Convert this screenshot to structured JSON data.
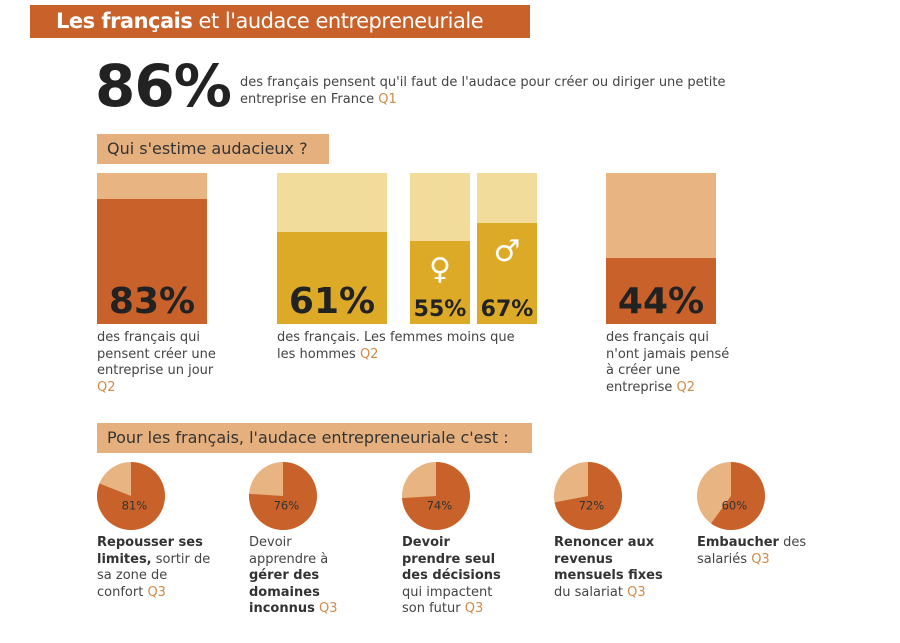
{
  "header": {
    "title_bold": "Les français",
    "title_light": " et l'audace entrepreneuriale"
  },
  "headline": {
    "value": "86%",
    "text": "des français pensent qu'il faut de l'audace pour créer ou diriger une petite entreprise en France ",
    "ref": "Q1"
  },
  "section1": {
    "label": "Qui s'estime audacieux ?"
  },
  "section2": {
    "label": "Pour les français, l'audace entrepreneuriale c'est :"
  },
  "colors": {
    "dark": "#c9622a",
    "peach": "#e8b482",
    "yellow": "#ddaa28",
    "light_yellow": "#f2dc9c"
  },
  "chart_data": [
    {
      "type": "bar",
      "title": "Qui s'estime audacieux ?",
      "categories": [
        "Créer une entreprise un jour",
        "Français",
        "Femmes",
        "Hommes",
        "Jamais pensé à créer"
      ],
      "values": [
        83,
        61,
        55,
        67,
        44
      ],
      "labels": [
        "83%",
        "61%",
        "55%",
        "67%",
        "44%"
      ],
      "ylim": [
        0,
        100
      ],
      "captions": [
        {
          "text": "des français qui pensent créer une entreprise un jour ",
          "ref": "Q2"
        },
        {
          "text": "des français. Les femmes moins que les hommes ",
          "ref": "Q2"
        },
        {
          "text": "des français qui n'ont jamais pensé à créer une entreprise ",
          "ref": "Q2"
        }
      ],
      "symbols": {
        "female": "♀",
        "male": "♂"
      }
    },
    {
      "type": "pie",
      "title": "Pour les français, l'audace entrepreneuriale c'est :",
      "values": [
        81,
        76,
        74,
        72,
        60
      ],
      "labels": [
        "81%",
        "76%",
        "74%",
        "72%",
        "60%"
      ],
      "items": [
        {
          "segments": [
            {
              "t": "Repousser ses limites,",
              "b": true
            },
            {
              "t": " sortir de sa zone de confort ",
              "b": false
            }
          ],
          "ref": "Q3"
        },
        {
          "segments": [
            {
              "t": "Devoir apprendre à ",
              "b": false
            },
            {
              "t": "gérer des domaines inconnus",
              "b": true
            },
            {
              "t": " ",
              "b": false
            }
          ],
          "ref": "Q3"
        },
        {
          "segments": [
            {
              "t": "Devoir prendre seul des décisions",
              "b": true
            },
            {
              "t": " qui impactent son futur ",
              "b": false
            }
          ],
          "ref": "Q3"
        },
        {
          "segments": [
            {
              "t": "Renoncer aux revenus mensuels fixes",
              "b": true
            },
            {
              "t": " du salariat ",
              "b": false
            }
          ],
          "ref": "Q3"
        },
        {
          "segments": [
            {
              "t": "Embaucher",
              "b": true
            },
            {
              "t": " des salariés ",
              "b": false
            }
          ],
          "ref": "Q3"
        }
      ]
    }
  ]
}
